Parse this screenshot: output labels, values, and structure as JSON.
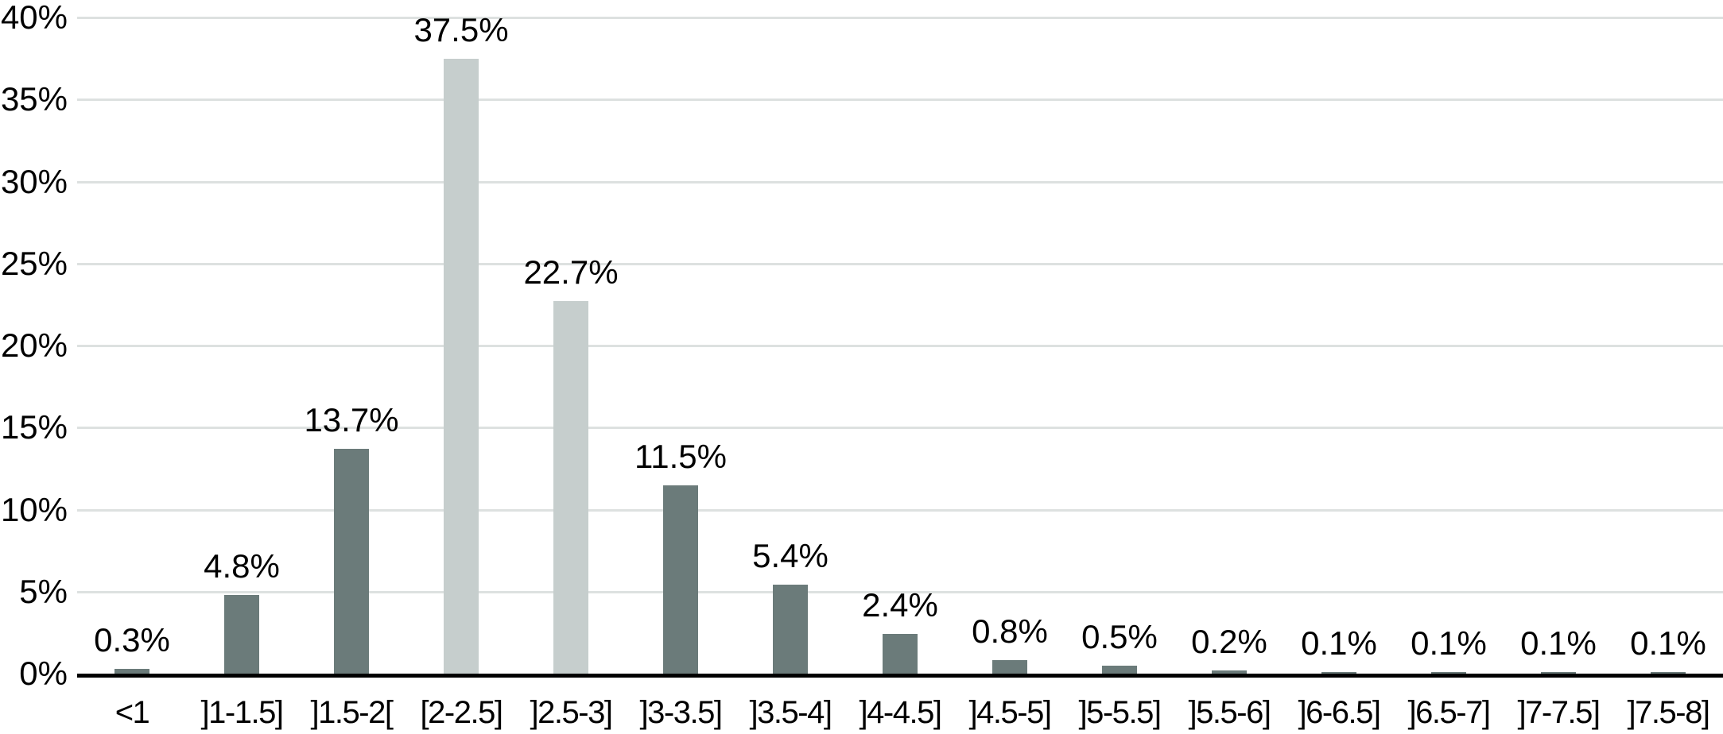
{
  "chart_data": {
    "type": "bar",
    "title": "",
    "xlabel": "",
    "ylabel": "",
    "categories": [
      "<1",
      "]1-1.5]",
      "]1.5-2[",
      "[2-2.5]",
      "]2.5-3]",
      "]3-3.5]",
      "]3.5-4]",
      "]4-4.5]",
      "]4.5-5]",
      "]5-5.5]",
      "]5.5-6]",
      "]6-6.5]",
      "]6.5-7]",
      "]7-7.5]",
      "]7.5-8]"
    ],
    "values": [
      0.3,
      4.8,
      13.7,
      37.5,
      22.7,
      11.5,
      5.4,
      2.4,
      0.8,
      0.5,
      0.2,
      0.1,
      0.1,
      0.1,
      0.1
    ],
    "value_labels": [
      "0.3%",
      "4.8%",
      "13.7%",
      "37.5%",
      "22.7%",
      "11.5%",
      "5.4%",
      "2.4%",
      "0.8%",
      "0.5%",
      "0.2%",
      "0.1%",
      "0.1%",
      "0.1%",
      "0.1%"
    ],
    "highlighted_indexes": [
      3,
      4
    ],
    "y_ticks": [
      "0%",
      "5%",
      "10%",
      "15%",
      "20%",
      "25%",
      "30%",
      "35%",
      "40%"
    ],
    "ylim": [
      0,
      40
    ],
    "grid": "horizontal",
    "legend": "none",
    "colors": {
      "bar_default": "#6b7b7a",
      "bar_highlight": "#c6cecd",
      "gridline": "#dde1e0",
      "axis": "#000000",
      "text": "#000000",
      "background": "#ffffff"
    }
  }
}
